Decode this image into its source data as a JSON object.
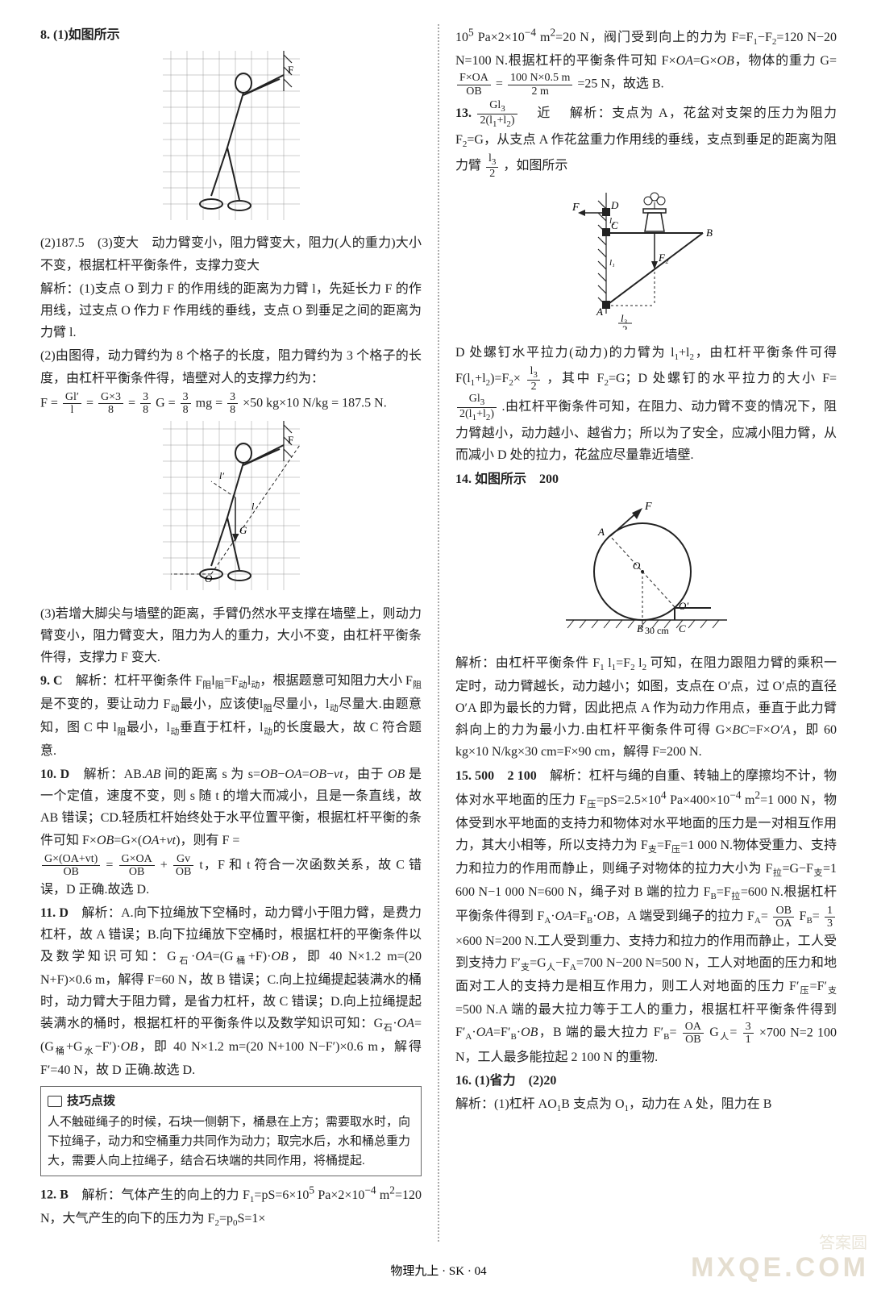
{
  "footer": "物理九上 · SK · 04",
  "watermark_small": "答案圆",
  "watermark": "MXQE.COM",
  "left": {
    "q8_lead": "8. (1)如图所示",
    "q8_p2": "(2)187.5　(3)变大　动力臂变小，阻力臂变大，阻力(人的重力)大小不变，根据杠杆平衡条件，支撑力变大",
    "q8_ana1": "解析：(1)支点 O 到力 F 的作用线的距离为力臂 l，先延长力 F 的作用线，过支点 O 作力 F 作用线的垂线，支点 O 到垂足之间的距离为力臂 l.",
    "q8_ana2": "(2)由图得，动力臂约为 8 个格子的长度，阻力臂约为 3 个格子的长度，由杠杆平衡条件得，墙壁对人的支撑力约为：",
    "q8_formula_a": "F = ",
    "q8_formula_f1n": "Gl′",
    "q8_formula_f1d": "l",
    "q8_formula_eq1": " = ",
    "q8_formula_f2n": "G×3",
    "q8_formula_f2d": "8",
    "q8_formula_eq2": " = ",
    "q8_formula_f3n": "3",
    "q8_formula_f3d": "8",
    "q8_formula_mid": "G = ",
    "q8_formula_f4n": "3",
    "q8_formula_f4d": "8",
    "q8_formula_b": "mg = ",
    "q8_formula_f5n": "3",
    "q8_formula_f5d": "8",
    "q8_formula_c": "×50 kg×10 N/kg = 187.5 N.",
    "q8_p3": "(3)若增大脚尖与墙壁的距离，手臂仍然水平支撑在墙壁上，则动力臂变小，阻力臂变大，阻力为人的重力，大小不变，由杠杆平衡条件得，支撑力 F 变大.",
    "q9_lead": "9. C　",
    "q9_ana": "解析：杠杆平衡条件 F<sub>阻</sub>l<sub>阻</sub>=F<sub>动</sub>l<sub>动</sub>，根据题意可知阻力大小 F<sub>阻</sub>是不变的，要让动力 F<sub>动</sub>最小，应该使l<sub>阻</sub>尽量小，l<sub>动</sub>尽量大.由题意知，图 C 中 l<sub>阻</sub>最小，l<sub>动</sub>垂直于杠杆，l<sub>动</sub>的长度最大，故 C 符合题意.",
    "q10_lead": "10. D　",
    "q10_ana": "解析：AB.<i>AB</i> 间的距离 s 为 s=<i>OB</i>−<i>OA</i>=<i>OB</i>−<i>vt</i>，由于 <i>OB</i> 是一个定值，速度不变，则 s 随 t 的增大而减小，且是一条直线，故 AB 错误；CD.轻质杠杆始终处于水平位置平衡，根据杠杆平衡的条件可知 F×<i>OB</i>=G×(<i>OA</i>+<i>vt</i>)，则有 F =",
    "q10_f1n": "G×(OA+vt)",
    "q10_f1d": "OB",
    "q10_mid": " = ",
    "q10_f2n": "G×OA",
    "q10_f2d": "OB",
    "q10_plus": " + ",
    "q10_f3n": "Gv",
    "q10_f3d": "OB",
    "q10_tail": "t，F 和 t 符合一次函数关系，故 C 错误，D 正确.故选 D.",
    "q11_lead": "11. D　",
    "q11_ana": "解析：A.向下拉绳放下空桶时，动力臂小于阻力臂，是费力杠杆，故 A 错误；B.向下拉绳放下空桶时，根据杠杆的平衡条件以及数学知识可知：G<sub>石</sub>·<i>OA</i>=(G<sub>桶</sub>+F)·<i>OB</i>，即 40 N×1.2 m=(20 N+F)×0.6 m，解得 F=60 N，故 B 错误；C.向上拉绳提起装满水的桶时，动力臂大于阻力臂，是省力杠杆，故 C 错误；D.向上拉绳提起装满水的桶时，根据杠杆的平衡条件以及数学知识可知：G<sub>石</sub>·<i>OA</i>=(G<sub>桶</sub>+G<sub>水</sub>−F′)·<i>OB</i>，即 40 N×1.2 m=(20 N+100 N−F′)×0.6 m，解得 F′=40 N，故 D 正确.故选 D.",
    "tips_title": "技巧点拨",
    "tips_body": "人不触碰绳子的时候，石块一侧朝下，桶悬在上方；需要取水时，向下拉绳子，动力和空桶重力共同作为动力；取完水后，水和桶总重力大，需要人向上拉绳子，结合石块端的共同作用，将桶提起.",
    "q12_lead": "12. B　",
    "q12_ana": "解析：气体产生的向上的力 F<sub>1</sub>=pS=6×10<sup>5</sup> Pa×2×10<sup>−4</sup> m<sup>2</sup>=120 N，大气产生的向下的压力为 F<sub>2</sub>=p<sub>0</sub>S=1×"
  },
  "right": {
    "q12_cont": "10<sup>5</sup> Pa×2×10<sup>−4</sup> m<sup>2</sup>=20 N，阀门受到向上的力为 F=F<sub>1</sub>−F<sub>2</sub>=120 N−20 N=100 N.根据杠杆的平衡条件可知 F×<i>OA</i>=G×<i>OB</i>，物体的重力 G=",
    "q12_f1n": "F×OA",
    "q12_f1d": "OB",
    "q12_mid": " = ",
    "q12_f2n": "100 N×0.5 m",
    "q12_f2d": "2 m",
    "q12_tail": "=25 N，故选 B.",
    "q13_lead": "13. ",
    "q13_fn": "Gl<sub>3</sub>",
    "q13_fd": "2(l<sub>1</sub>+l<sub>2</sub>)",
    "q13_ans2": "　近　",
    "q13_ana1": "解析：支点为 A，花盆对支架的压力为阻力 F<sub>2</sub>=G，从支点 A 作花盆重力作用线的垂线，支点到垂足的距离为阻力臂",
    "q13_fln": "l<sub>3</sub>",
    "q13_fld": "2",
    "q13_ana1b": "，如图所示",
    "q13_ana2": "D 处螺钉水平拉力(动力)的力臂为 l<sub>1</sub>+l<sub>2</sub>，由杠杆平衡条件可得 F(l<sub>1</sub>+l<sub>2</sub>)=F<sub>2</sub>×",
    "q13_f2n": "l<sub>3</sub>",
    "q13_f2d": "2",
    "q13_ana2b": "，其中 F<sub>2</sub>=G；D 处螺钉的水平拉力的大小 F=",
    "q13_f3n": "Gl<sub>3</sub>",
    "q13_f3d": "2(l<sub>1</sub>+l<sub>2</sub>)",
    "q13_ana3": ".由杠杆平衡条件可知，在阻力、动力臂不变的情况下，阻力臂越小，动力越小、越省力；所以为了安全，应减小阻力臂，从而减小 D 处的拉力，花盆应尽量靠近墙壁.",
    "q14_lead": "14. 如图所示　200",
    "q14_ana": "解析：由杠杆平衡条件 F<sub>1</sub> l<sub>1</sub>=F<sub>2</sub> l<sub>2</sub> 可知，在阻力跟阻力臂的乘积一定时，动力臂越长，动力越小；如图，支点在 O′点，过 O′点的直径 O′A 即为最长的力臂，因此把点 A 作为动力作用点，垂直于此力臂斜向上的力为最小力.由杠杆平衡条件可得 G×<i>BC</i>=F×<i>O′A</i>，即 60 kg×10 N/kg×30 cm=F×90 cm，解得 F=200 N.",
    "q15_lead": "15. 500　2 100　",
    "q15_ana1": "解析：杠杆与绳的自重、转轴上的摩擦均不计，物体对水平地面的压力 F<sub>压</sub>=pS=2.5×10<sup>4</sup> Pa×400×10<sup>−4</sup> m<sup>2</sup>=1 000 N，物体受到水平地面的支持力和物体对水平地面的压力是一对相互作用力，其大小相等，所以支持力为 F<sub>支</sub>=F<sub>压</sub>=1 000 N.物体受重力、支持力和拉力的作用而静止，则绳子对物体的拉力大小为 F<sub>拉</sub>=G−F<sub>支</sub>=1 600 N−1 000 N=600 N，绳子对 B 端的拉力 F<sub>B</sub>=F<sub>拉</sub>=600 N.根据杠杆平衡条件得到 F<sub>A</sub>·<i>OA</i>=F<sub>B</sub>·<i>OB</i>，A 端受到绳子的拉力 F<sub>A</sub>=",
    "q15_f1n": "OB",
    "q15_f1d": "OA",
    "q15_mid1": "F<sub>B</sub>=",
    "q15_f2n": "1",
    "q15_f2d": "3",
    "q15_ana2": "×600 N=200 N.工人受到重力、支持力和拉力的作用而静止，工人受到支持力 F′<sub>支</sub>=G<sub>人</sub>−F<sub>A</sub>=700 N−200 N=500 N，工人对地面的压力和地面对工人的支持力是相互作用力，则工人对地面的压力 F′<sub>压</sub>=F′<sub>支</sub>=500 N.A 端的最大拉力等于工人的重力，根据杠杆平衡条件得到 F′<sub>A</sub>·<i>OA</i>=F′<sub>B</sub>·<i>OB</i>，B 端的最大拉力 F′<sub>B</sub>=",
    "q15_f3n": "OA",
    "q15_f3d": "OB",
    "q15_mid2": "G<sub>人</sub>=",
    "q15_f4n": "3",
    "q15_f4d": "1",
    "q15_tail": "×700 N=2 100 N，工人最多能拉起 2 100 N 的重物.",
    "q16_lead": "16. (1)省力　(2)20",
    "q16_ana": "解析：(1)杠杆 AO<sub>1</sub>B 支点为 O<sub>1</sub>，动力在 A 处，阻力在 B"
  },
  "svg": {
    "grid_stroke": "#888",
    "line_stroke": "#222",
    "dash": "4,3"
  }
}
